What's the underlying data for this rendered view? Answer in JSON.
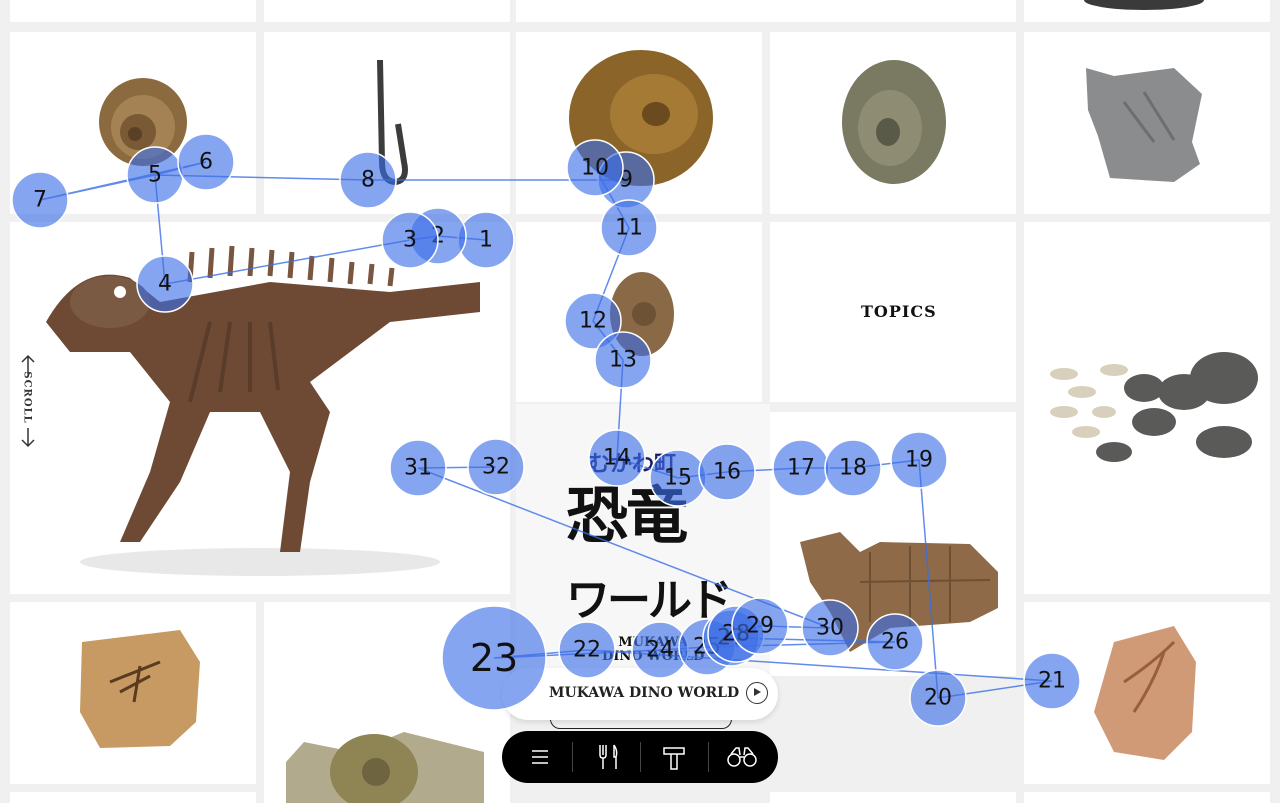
{
  "topics": {
    "label": "TOPICS"
  },
  "scroll": {
    "label": "SCROLL"
  },
  "logo": {
    "kana": "むかわ町",
    "title_line1": "恐竜",
    "title_line2": "ワールド",
    "english_line1": "MUKAWA",
    "english_line2": "DINO WORLD"
  },
  "pill": {
    "label": "MUKAWA DINO WORLD",
    "play_icon": "play-icon"
  },
  "nav": {
    "items": [
      {
        "icon": "menu-icon"
      },
      {
        "icon": "fork-knife-icon"
      },
      {
        "icon": "hammer-icon"
      },
      {
        "icon": "binoculars-icon"
      }
    ]
  },
  "overlay": {
    "fill_color": "#3b6ee6",
    "markers": [
      "1",
      "2",
      "3",
      "4",
      "5",
      "6",
      "7",
      "8",
      "9",
      "10",
      "11",
      "12",
      "13",
      "14",
      "15",
      "16",
      "17",
      "18",
      "19",
      "20",
      "21",
      "22",
      "23",
      "24",
      "25",
      "26",
      "27",
      "28",
      "29",
      "30",
      "31",
      "32"
    ]
  }
}
